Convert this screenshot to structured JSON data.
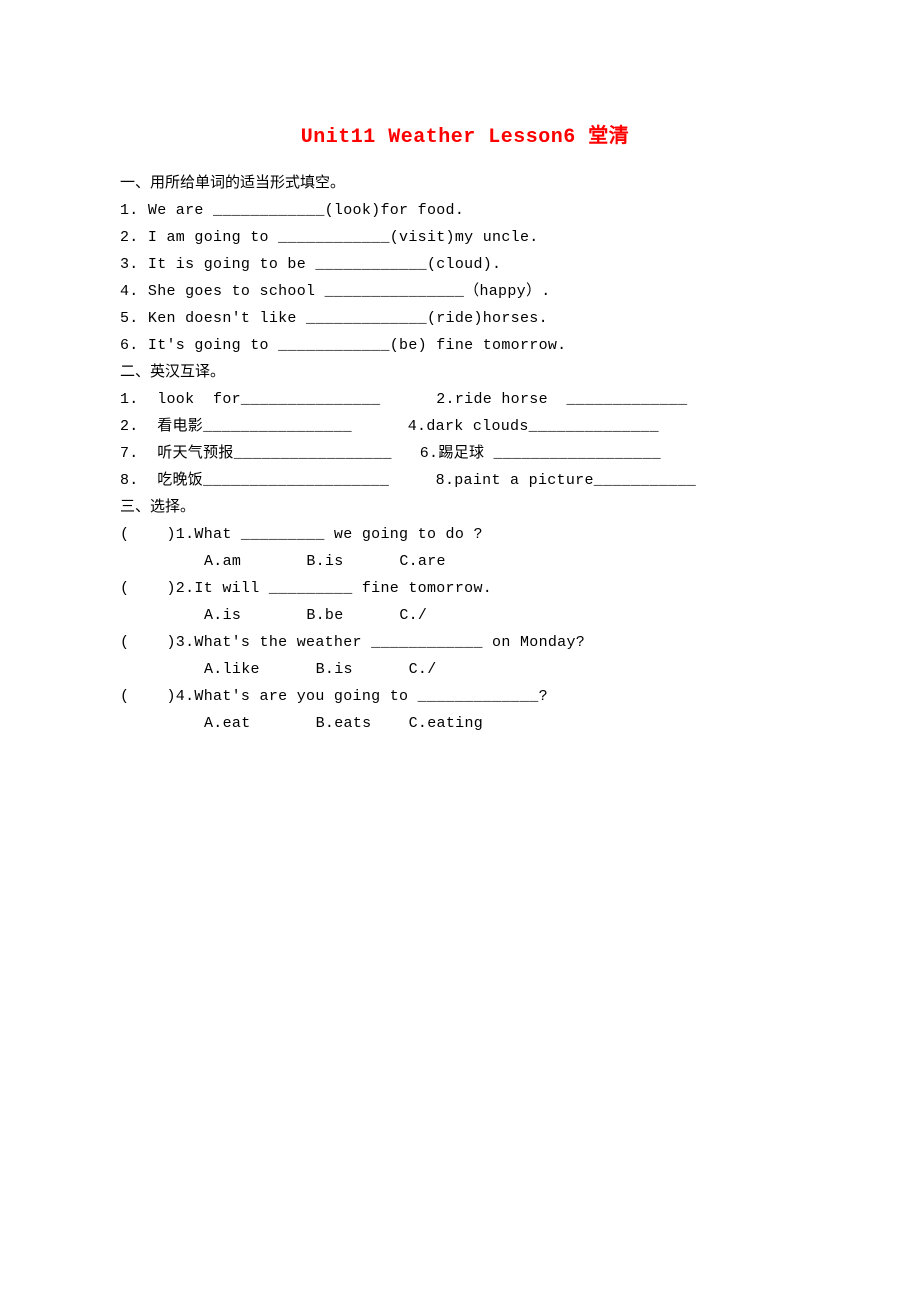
{
  "title": "Unit11 Weather  Lesson6 堂清",
  "section1": {
    "header": "一、用所给单词的适当形式填空。",
    "items": [
      "1. We are ____________(look)for food.",
      "2. I am going to ____________(visit)my uncle.",
      "3. It is going to be ____________(cloud).",
      "4. She goes to school _______________（happy）.",
      "5. Ken doesn't like _____________(ride)horses.",
      "6. It's going to ____________(be) fine tomorrow."
    ]
  },
  "section2": {
    "header": "二、英汉互译。",
    "items": [
      "1.  look  for_______________      2.ride horse  _____________",
      "2.  看电影________________      4.dark clouds______________",
      "7.  听天气预报_________________   6.踢足球 __________________",
      "8.  吃晚饭____________________     8.paint a picture___________"
    ]
  },
  "section3": {
    "header": "三、选择。",
    "questions": [
      {
        "q": "(    )1.What _________ we going to do ?",
        "opts": "A.am       B.is      C.are"
      },
      {
        "q": "(    )2.It will _________ fine tomorrow.",
        "opts": "A.is       B.be      C./"
      },
      {
        "q": "(    )3.What's the weather ____________ on Monday?",
        "opts": "A.like      B.is      C./"
      },
      {
        "q": "(    )4.What's are you going to _____________?",
        "opts": "A.eat       B.eats    C.eating"
      }
    ]
  }
}
